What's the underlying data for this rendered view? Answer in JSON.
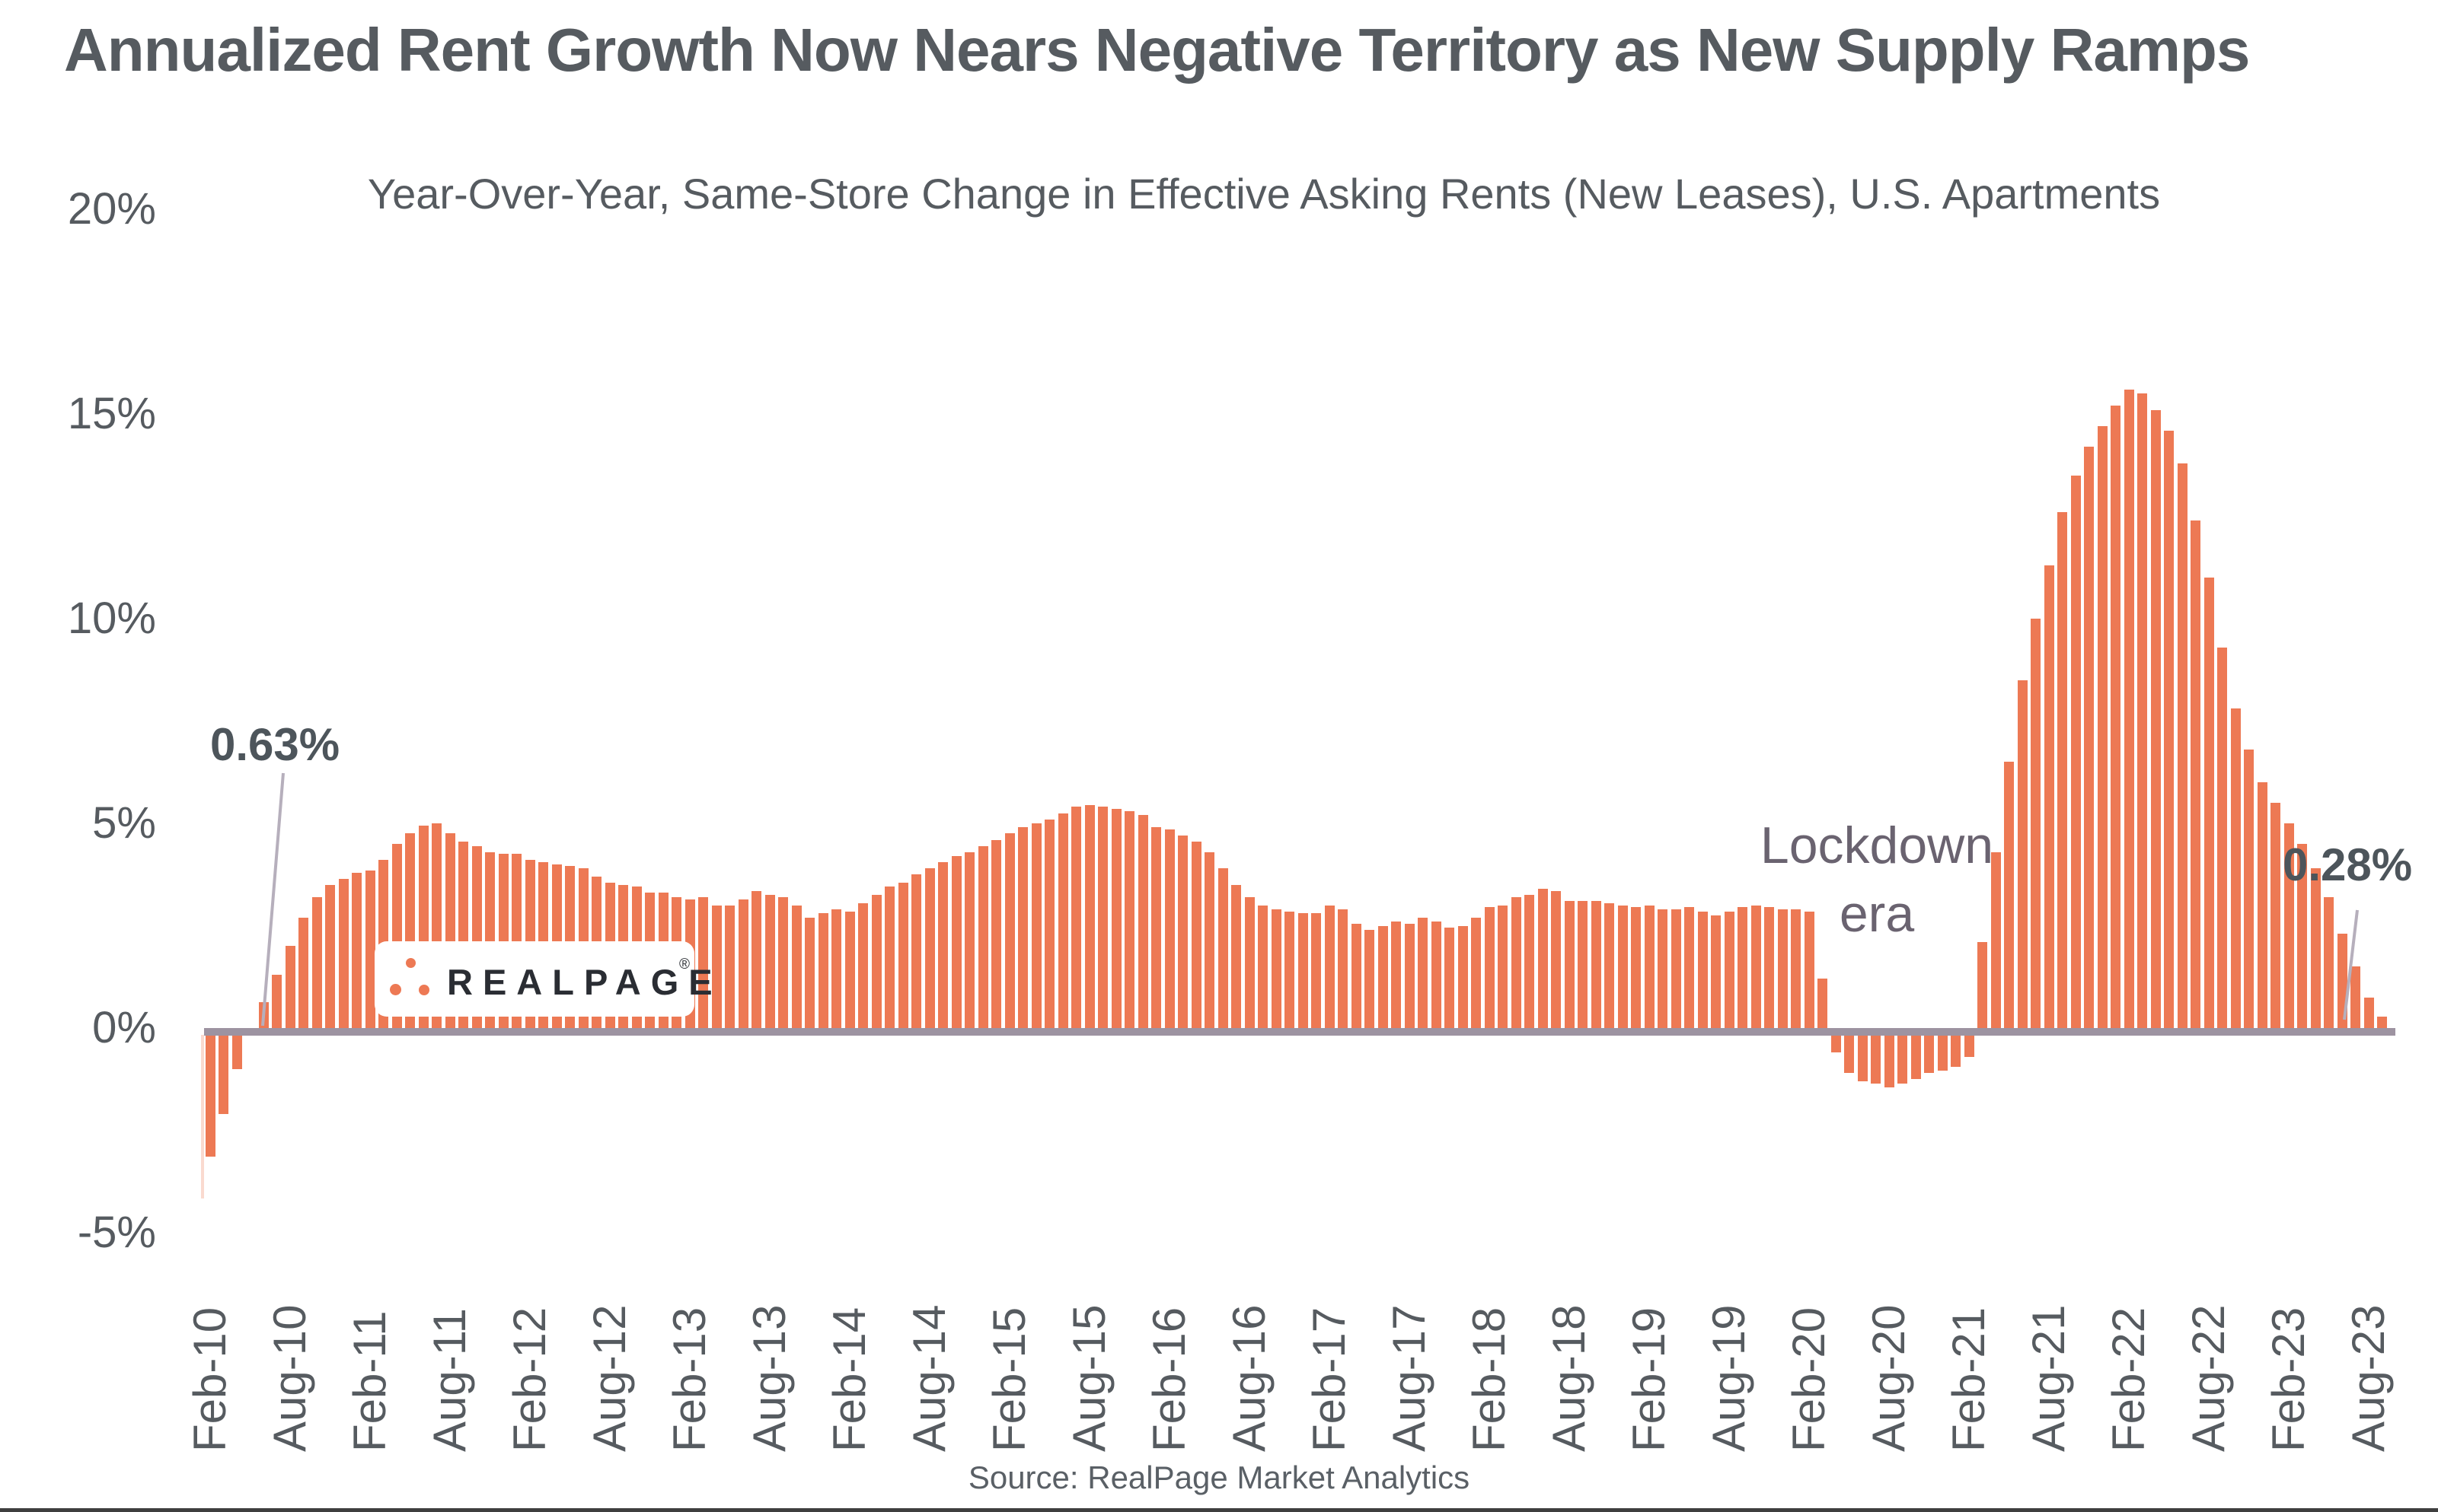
{
  "header": {
    "title": "Annualized Rent Growth Now Nears Negative Territory as New Supply Ramps",
    "subtitle": "Year-Over-Year, Same-Store Change in Effective Asking Rents (New Leases), U.S. Apartments"
  },
  "chart_data": {
    "type": "bar",
    "title": "Annualized Rent Growth Now Nears Negative Territory as New Supply Ramps",
    "subtitle": "Year-Over-Year, Same-Store Change in Effective Asking Rents (New Leases), U.S. Apartments",
    "unit": "percent",
    "frequency": "monthly",
    "start_month": "Feb-2010",
    "end_month": "Sep-2023",
    "bar_color": "#ed7954",
    "axis_line_color": "#9d93a1",
    "ylim": [
      -5,
      20
    ],
    "grid": "off",
    "y_ticks": [
      {
        "label": "20%",
        "value": 20
      },
      {
        "label": "15%",
        "value": 15
      },
      {
        "label": "10%",
        "value": 10
      },
      {
        "label": "5%",
        "value": 5
      },
      {
        "label": "0%",
        "value": 0
      },
      {
        "label": "-5%",
        "value": -5
      }
    ],
    "x_tick_every": 6,
    "x_tick_labels": [
      "Feb-10",
      "Aug-10",
      "Feb-11",
      "Aug-11",
      "Feb-12",
      "Aug-12",
      "Feb-13",
      "Aug-13",
      "Feb-14",
      "Aug-14",
      "Feb-15",
      "Aug-15",
      "Feb-16",
      "Aug-16",
      "Feb-17",
      "Aug-17",
      "Feb-18",
      "Aug-18",
      "Feb-19",
      "Aug-19",
      "Feb-20",
      "Aug-20",
      "Feb-21",
      "Aug-21",
      "Feb-22",
      "Aug-22",
      "Feb-23",
      "Aug-23"
    ],
    "values": [
      -3.15,
      -2.1,
      -1.0,
      -0.05,
      0.63,
      1.3,
      2.0,
      2.7,
      3.2,
      3.5,
      3.65,
      3.8,
      3.85,
      4.1,
      4.5,
      4.75,
      4.95,
      5.0,
      4.75,
      4.55,
      4.45,
      4.3,
      4.25,
      4.25,
      4.1,
      4.05,
      4.0,
      3.95,
      3.9,
      3.7,
      3.55,
      3.5,
      3.45,
      3.3,
      3.3,
      3.2,
      3.15,
      3.2,
      3.0,
      3.0,
      3.15,
      3.35,
      3.25,
      3.2,
      3.0,
      2.7,
      2.8,
      2.9,
      2.85,
      3.05,
      3.25,
      3.45,
      3.55,
      3.75,
      3.9,
      4.05,
      4.2,
      4.3,
      4.45,
      4.6,
      4.75,
      4.9,
      5.0,
      5.1,
      5.25,
      5.4,
      5.45,
      5.4,
      5.35,
      5.3,
      5.2,
      4.9,
      4.85,
      4.7,
      4.55,
      4.3,
      3.9,
      3.5,
      3.2,
      3.0,
      2.9,
      2.85,
      2.8,
      2.8,
      3.0,
      2.9,
      2.55,
      2.4,
      2.5,
      2.6,
      2.55,
      2.7,
      2.6,
      2.45,
      2.5,
      2.7,
      2.95,
      3.0,
      3.2,
      3.25,
      3.4,
      3.35,
      3.1,
      3.1,
      3.1,
      3.05,
      3.0,
      2.95,
      3.0,
      2.9,
      2.9,
      2.95,
      2.85,
      2.75,
      2.85,
      2.95,
      3.0,
      2.95,
      2.9,
      2.9,
      2.85,
      1.2,
      -0.6,
      -1.1,
      -1.3,
      -1.35,
      -1.45,
      -1.35,
      -1.25,
      -1.1,
      -1.05,
      -0.95,
      -0.7,
      2.1,
      4.3,
      6.5,
      8.5,
      10.0,
      11.3,
      12.6,
      13.5,
      14.2,
      14.7,
      15.2,
      15.6,
      15.5,
      15.1,
      14.6,
      13.8,
      12.4,
      11.0,
      9.3,
      7.8,
      6.8,
      6.0,
      5.5,
      5.0,
      4.5,
      3.9,
      3.2,
      2.3,
      1.5,
      0.75,
      0.28
    ],
    "annotations": {
      "first_positive": {
        "label": "0.63%",
        "bar_index": 4
      },
      "latest": {
        "label": "0.28%",
        "bar_index": 163
      },
      "lockdown_line1": "Lockdown",
      "lockdown_line2": "era"
    }
  },
  "logo": {
    "text": "REALPAGE",
    "registered_mark": "®"
  },
  "footer": {
    "source": "Source: RealPage Market Analytics"
  }
}
